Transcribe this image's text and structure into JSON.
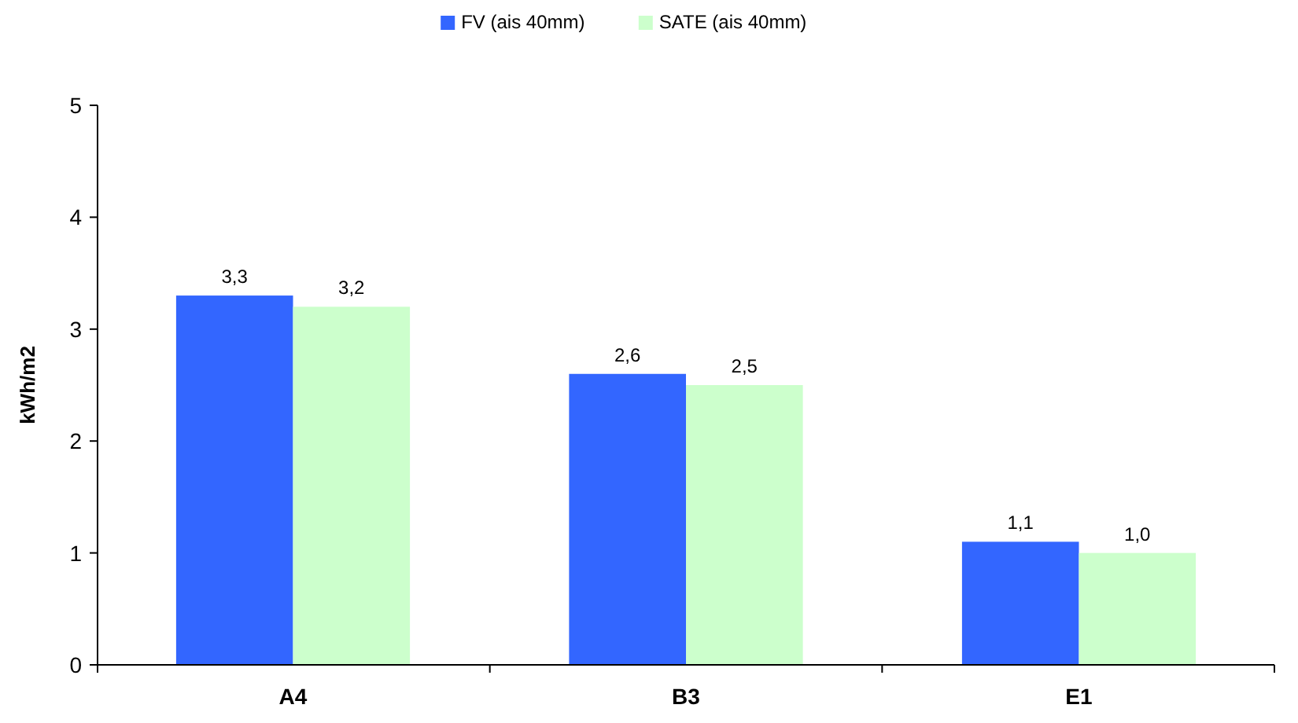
{
  "chart_data": {
    "type": "bar",
    "ylabel": "kWh/m2",
    "categories": [
      "A4",
      "B3",
      "E1"
    ],
    "series": [
      {
        "name": "FV (ais 40mm)",
        "color": "#3366ff",
        "values": [
          3.3,
          2.6,
          1.1
        ],
        "value_labels": [
          "3,3",
          "2,6",
          "1,1"
        ]
      },
      {
        "name": "SATE (ais 40mm)",
        "color": "#ccffcc",
        "values": [
          3.2,
          2.5,
          1.0
        ],
        "value_labels": [
          "3,2",
          "2,5",
          "1,0"
        ]
      }
    ],
    "ylim": [
      0,
      5
    ],
    "yticks": [
      0,
      1,
      2,
      3,
      4,
      5
    ],
    "grid": false,
    "legend": "top"
  }
}
